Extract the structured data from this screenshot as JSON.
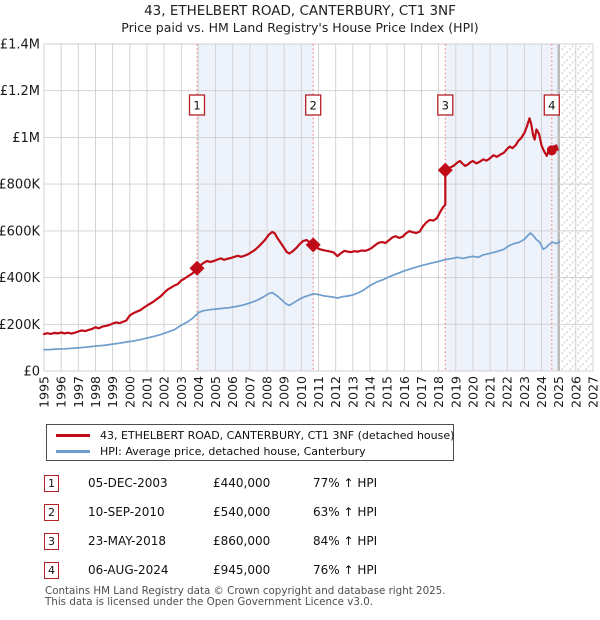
{
  "title": "43, ETHELBERT ROAD, CANTERBURY, CT1 3NF",
  "subtitle": "Price paid vs. HM Land Registry's House Price Index (HPI)",
  "chart_data": {
    "type": "line",
    "units": "GBP thousands",
    "x_range": [
      1995,
      2027
    ],
    "ylim": [
      0,
      1400
    ],
    "y_tick_labels": [
      "£0",
      "£200K",
      "£400K",
      "£600K",
      "£800K",
      "£1M",
      "£1.2M",
      "£1.4M"
    ],
    "y_tick_values": [
      0,
      200,
      400,
      600,
      800,
      1000,
      1200,
      1400
    ],
    "x_tick_labels": [
      "1995",
      "1996",
      "1997",
      "1998",
      "1999",
      "2000",
      "2001",
      "2002",
      "2003",
      "2004",
      "2005",
      "2006",
      "2007",
      "2008",
      "2009",
      "2010",
      "2011",
      "2012",
      "2013",
      "2014",
      "2015",
      "2016",
      "2017",
      "2018",
      "2019",
      "2020",
      "2021",
      "2022",
      "2023",
      "2024",
      "2025",
      "2026",
      "2027"
    ],
    "grid": true,
    "legend_position": "below",
    "shaded_bands": [
      [
        2003.92,
        2010.69
      ],
      [
        2018.39,
        2025
      ]
    ],
    "future_hatch_range": [
      2025,
      2027
    ],
    "colors": {
      "price_line": "#c00c18",
      "hpi_line": "#6d9dcd",
      "event_dash": "#f07e7e",
      "event_box_border": "#b42025",
      "band_fill": "#eef2fa",
      "grid": "#cfcfcf",
      "hatch": "#b8b8b8"
    },
    "series": [
      {
        "name": "43, ETHELBERT ROAD, CANTERBURY, CT1 3NF (detached house)",
        "color": "#c00c18",
        "points": [
          [
            1995,
            158
          ],
          [
            1995.2,
            162
          ],
          [
            1995.4,
            159
          ],
          [
            1995.6,
            163
          ],
          [
            1995.8,
            161
          ],
          [
            1996,
            165
          ],
          [
            1996.2,
            161
          ],
          [
            1996.4,
            164
          ],
          [
            1996.6,
            160
          ],
          [
            1996.8,
            164
          ],
          [
            1997,
            169
          ],
          [
            1997.2,
            174
          ],
          [
            1997.4,
            171
          ],
          [
            1997.6,
            176
          ],
          [
            1997.8,
            180
          ],
          [
            1998,
            187
          ],
          [
            1998.2,
            183
          ],
          [
            1998.4,
            190
          ],
          [
            1998.6,
            193
          ],
          [
            1998.8,
            197
          ],
          [
            1999,
            203
          ],
          [
            1999.2,
            208
          ],
          [
            1999.4,
            205
          ],
          [
            1999.6,
            210
          ],
          [
            1999.8,
            216
          ],
          [
            2000,
            238
          ],
          [
            2000.2,
            247
          ],
          [
            2000.4,
            254
          ],
          [
            2000.6,
            260
          ],
          [
            2000.8,
            270
          ],
          [
            2001,
            280
          ],
          [
            2001.2,
            289
          ],
          [
            2001.4,
            298
          ],
          [
            2001.6,
            309
          ],
          [
            2001.8,
            320
          ],
          [
            2002,
            335
          ],
          [
            2002.2,
            348
          ],
          [
            2002.4,
            357
          ],
          [
            2002.6,
            366
          ],
          [
            2002.8,
            372
          ],
          [
            2003,
            388
          ],
          [
            2003.2,
            396
          ],
          [
            2003.4,
            406
          ],
          [
            2003.6,
            415
          ],
          [
            2003.8,
            427
          ],
          [
            2003.92,
            440
          ],
          [
            2004.1,
            452
          ],
          [
            2004.3,
            463
          ],
          [
            2004.5,
            471
          ],
          [
            2004.7,
            467
          ],
          [
            2004.9,
            471
          ],
          [
            2005.1,
            477
          ],
          [
            2005.3,
            482
          ],
          [
            2005.5,
            476
          ],
          [
            2005.7,
            481
          ],
          [
            2005.9,
            484
          ],
          [
            2006.1,
            489
          ],
          [
            2006.3,
            493
          ],
          [
            2006.5,
            489
          ],
          [
            2006.7,
            494
          ],
          [
            2006.9,
            500
          ],
          [
            2007.1,
            509
          ],
          [
            2007.3,
            519
          ],
          [
            2007.5,
            532
          ],
          [
            2007.7,
            547
          ],
          [
            2007.9,
            563
          ],
          [
            2008.1,
            583
          ],
          [
            2008.3,
            595
          ],
          [
            2008.45,
            589
          ],
          [
            2008.6,
            570
          ],
          [
            2008.8,
            548
          ],
          [
            2009,
            526
          ],
          [
            2009.15,
            509
          ],
          [
            2009.3,
            503
          ],
          [
            2009.5,
            513
          ],
          [
            2009.7,
            526
          ],
          [
            2009.9,
            543
          ],
          [
            2010.1,
            556
          ],
          [
            2010.3,
            561
          ],
          [
            2010.5,
            551
          ],
          [
            2010.69,
            540
          ],
          [
            2010.9,
            527
          ],
          [
            2011.1,
            521
          ],
          [
            2011.3,
            517
          ],
          [
            2011.5,
            514
          ],
          [
            2011.7,
            511
          ],
          [
            2011.9,
            507
          ],
          [
            2012.1,
            492
          ],
          [
            2012.3,
            504
          ],
          [
            2012.5,
            514
          ],
          [
            2012.7,
            511
          ],
          [
            2012.9,
            509
          ],
          [
            2013.1,
            513
          ],
          [
            2013.3,
            511
          ],
          [
            2013.5,
            516
          ],
          [
            2013.7,
            514
          ],
          [
            2013.9,
            519
          ],
          [
            2014.1,
            527
          ],
          [
            2014.3,
            538
          ],
          [
            2014.5,
            549
          ],
          [
            2014.7,
            552
          ],
          [
            2014.9,
            548
          ],
          [
            2015.1,
            559
          ],
          [
            2015.3,
            572
          ],
          [
            2015.5,
            577
          ],
          [
            2015.7,
            570
          ],
          [
            2015.9,
            575
          ],
          [
            2016.1,
            589
          ],
          [
            2016.3,
            599
          ],
          [
            2016.5,
            594
          ],
          [
            2016.7,
            591
          ],
          [
            2016.9,
            597
          ],
          [
            2017.1,
            621
          ],
          [
            2017.3,
            637
          ],
          [
            2017.5,
            647
          ],
          [
            2017.7,
            644
          ],
          [
            2017.9,
            654
          ],
          [
            2018.1,
            682
          ],
          [
            2018.25,
            700
          ],
          [
            2018.39,
            712
          ],
          [
            2018.39,
            860
          ],
          [
            2018.55,
            866
          ],
          [
            2018.7,
            872
          ],
          [
            2018.9,
            880
          ],
          [
            2019.1,
            893
          ],
          [
            2019.25,
            899
          ],
          [
            2019.4,
            887
          ],
          [
            2019.55,
            878
          ],
          [
            2019.7,
            884
          ],
          [
            2019.85,
            893
          ],
          [
            2020,
            899
          ],
          [
            2020.2,
            889
          ],
          [
            2020.4,
            896
          ],
          [
            2020.6,
            906
          ],
          [
            2020.8,
            901
          ],
          [
            2021,
            911
          ],
          [
            2021.2,
            924
          ],
          [
            2021.4,
            917
          ],
          [
            2021.6,
            927
          ],
          [
            2021.8,
            934
          ],
          [
            2022,
            951
          ],
          [
            2022.15,
            961
          ],
          [
            2022.3,
            954
          ],
          [
            2022.5,
            967
          ],
          [
            2022.65,
            986
          ],
          [
            2022.8,
            996
          ],
          [
            2023,
            1019
          ],
          [
            2023.15,
            1047
          ],
          [
            2023.3,
            1082
          ],
          [
            2023.4,
            1058
          ],
          [
            2023.5,
            1012
          ],
          [
            2023.6,
            991
          ],
          [
            2023.7,
            1034
          ],
          [
            2023.85,
            1016
          ],
          [
            2024,
            966
          ],
          [
            2024.15,
            941
          ],
          [
            2024.3,
            921
          ],
          [
            2024.45,
            951
          ],
          [
            2024.6,
            945
          ],
          [
            2024.72,
            960
          ],
          [
            2024.85,
            966
          ],
          [
            2024.95,
            947
          ]
        ]
      },
      {
        "name": "HPI: Average price, detached house, Canterbury",
        "color": "#6d9dcd",
        "points": [
          [
            1995,
            91
          ],
          [
            1995.4,
            92
          ],
          [
            1995.8,
            94
          ],
          [
            1996.2,
            95
          ],
          [
            1996.6,
            97
          ],
          [
            1997,
            99
          ],
          [
            1997.4,
            102
          ],
          [
            1997.8,
            105
          ],
          [
            1998.2,
            108
          ],
          [
            1998.6,
            111
          ],
          [
            1999,
            115
          ],
          [
            1999.4,
            119
          ],
          [
            1999.8,
            124
          ],
          [
            2000.2,
            128
          ],
          [
            2000.6,
            134
          ],
          [
            2001,
            141
          ],
          [
            2001.4,
            148
          ],
          [
            2001.8,
            156
          ],
          [
            2002.2,
            166
          ],
          [
            2002.6,
            177
          ],
          [
            2003,
            196
          ],
          [
            2003.4,
            212
          ],
          [
            2003.7,
            228
          ],
          [
            2004,
            250
          ],
          [
            2004.3,
            258
          ],
          [
            2004.6,
            262
          ],
          [
            2005,
            265
          ],
          [
            2005.4,
            268
          ],
          [
            2005.8,
            271
          ],
          [
            2006.2,
            276
          ],
          [
            2006.6,
            282
          ],
          [
            2007,
            291
          ],
          [
            2007.4,
            302
          ],
          [
            2007.8,
            318
          ],
          [
            2008.1,
            331
          ],
          [
            2008.3,
            336
          ],
          [
            2008.6,
            321
          ],
          [
            2008.85,
            305
          ],
          [
            2009.1,
            288
          ],
          [
            2009.3,
            281
          ],
          [
            2009.6,
            294
          ],
          [
            2009.9,
            308
          ],
          [
            2010.2,
            318
          ],
          [
            2010.5,
            325
          ],
          [
            2010.69,
            331
          ],
          [
            2011,
            327
          ],
          [
            2011.3,
            322
          ],
          [
            2011.6,
            319
          ],
          [
            2011.9,
            316
          ],
          [
            2012.1,
            312
          ],
          [
            2012.4,
            318
          ],
          [
            2012.7,
            321
          ],
          [
            2013,
            326
          ],
          [
            2013.3,
            334
          ],
          [
            2013.6,
            345
          ],
          [
            2014,
            366
          ],
          [
            2014.4,
            381
          ],
          [
            2014.8,
            392
          ],
          [
            2015.2,
            406
          ],
          [
            2015.6,
            417
          ],
          [
            2016,
            429
          ],
          [
            2016.4,
            438
          ],
          [
            2016.8,
            447
          ],
          [
            2017.2,
            455
          ],
          [
            2017.6,
            462
          ],
          [
            2018,
            469
          ],
          [
            2018.4,
            477
          ],
          [
            2018.8,
            482
          ],
          [
            2019.1,
            487
          ],
          [
            2019.4,
            482
          ],
          [
            2019.7,
            487
          ],
          [
            2020,
            491
          ],
          [
            2020.3,
            487
          ],
          [
            2020.6,
            497
          ],
          [
            2021,
            504
          ],
          [
            2021.4,
            511
          ],
          [
            2021.8,
            521
          ],
          [
            2022.1,
            536
          ],
          [
            2022.4,
            546
          ],
          [
            2022.7,
            551
          ],
          [
            2023,
            564
          ],
          [
            2023.2,
            580
          ],
          [
            2023.35,
            591
          ],
          [
            2023.5,
            581
          ],
          [
            2023.7,
            563
          ],
          [
            2023.9,
            551
          ],
          [
            2024.1,
            521
          ],
          [
            2024.25,
            528
          ],
          [
            2024.45,
            543
          ],
          [
            2024.65,
            552
          ],
          [
            2024.85,
            546
          ],
          [
            2025.05,
            554
          ]
        ]
      }
    ],
    "transactions": [
      {
        "n": 1,
        "x": 2003.92,
        "price": 440,
        "marker": "diamond",
        "date": "05-DEC-2003",
        "price_label": "£440,000",
        "pct": "77% ↑ HPI"
      },
      {
        "n": 2,
        "x": 2010.69,
        "price": 540,
        "marker": "diamond",
        "date": "10-SEP-2010",
        "price_label": "£540,000",
        "pct": "63% ↑ HPI"
      },
      {
        "n": 3,
        "x": 2018.39,
        "price": 860,
        "marker": "diamond",
        "date": "23-MAY-2018",
        "price_label": "£860,000",
        "pct": "84% ↑ HPI"
      },
      {
        "n": 4,
        "x": 2024.6,
        "price": 945,
        "marker": "dot",
        "date": "06-AUG-2024",
        "price_label": "£945,000",
        "pct": "76% ↑ HPI"
      }
    ]
  },
  "legend": {
    "items": [
      {
        "label": "43, ETHELBERT ROAD, CANTERBURY, CT1 3NF (detached house)",
        "color": "#c00c18"
      },
      {
        "label": "HPI: Average price, detached house, Canterbury",
        "color": "#6d9dcd"
      }
    ]
  },
  "footer": {
    "line1": "Contains HM Land Registry data © Crown copyright and database right 2025.",
    "line2": "This data is licensed under the Open Government Licence v3.0."
  }
}
